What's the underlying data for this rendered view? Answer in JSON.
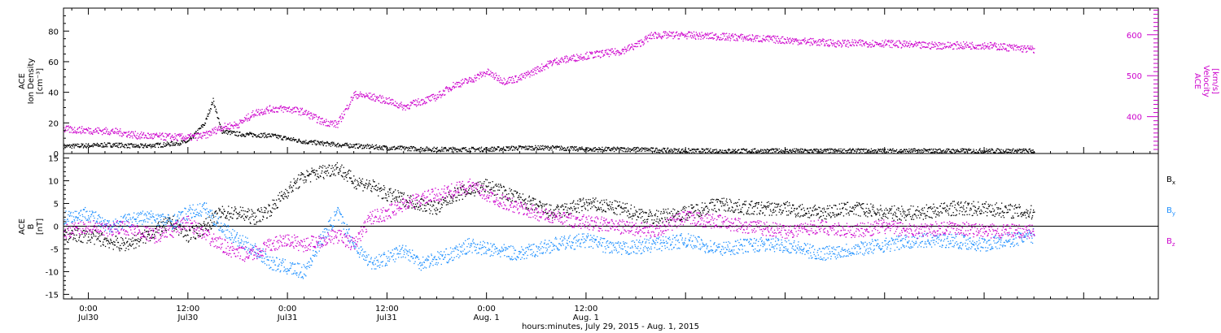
{
  "chart_data": [
    {
      "type": "scatter",
      "panel": "top",
      "left_ylabel": [
        "ACE",
        "Ion Density",
        "[cm⁻³]"
      ],
      "right_ylabel": [
        "ACE",
        "Velocity",
        "[km/s]"
      ],
      "left_ylim": [
        0,
        95
      ],
      "right_ylim": [
        310,
        665
      ],
      "left_yticks": [
        "0",
        "20",
        "40",
        "60",
        "80"
      ],
      "right_yticks": [
        "400",
        "500",
        "600"
      ],
      "xlim_hours": [
        -3,
        129
      ],
      "series": [
        {
          "color": "#000000",
          "axis": "left",
          "x": [
            -3,
            3,
            6,
            9,
            12,
            14,
            15,
            16,
            18,
            22,
            26,
            30,
            36,
            42,
            48,
            52,
            56,
            60,
            66,
            72,
            78,
            84,
            90,
            96,
            102,
            108,
            114
          ],
          "y": [
            5,
            6,
            5,
            6,
            8,
            20,
            35,
            15,
            13,
            12,
            8,
            6,
            4,
            3,
            3,
            4,
            4,
            3,
            3,
            2,
            2,
            2,
            2,
            2,
            2,
            2,
            2
          ]
        },
        {
          "color": "#cc00cc",
          "axis": "right",
          "x": [
            -3,
            3,
            6,
            9,
            12,
            14,
            16,
            18,
            20,
            22,
            24,
            26,
            28,
            30,
            32,
            34,
            36,
            38,
            40,
            42,
            44,
            46,
            48,
            50,
            52,
            56,
            60,
            64,
            66,
            68,
            72,
            78,
            84,
            90,
            96,
            100,
            104,
            108,
            114
          ],
          "y": [
            370,
            365,
            355,
            352,
            350,
            355,
            375,
            382,
            410,
            420,
            420,
            412,
            390,
            382,
            455,
            450,
            440,
            425,
            438,
            450,
            478,
            490,
            510,
            488,
            495,
            535,
            550,
            560,
            575,
            600,
            600,
            595,
            588,
            580,
            580,
            575,
            575,
            575,
            565
          ]
        }
      ]
    },
    {
      "type": "scatter",
      "panel": "bottom",
      "ylabel": [
        "ACE",
        "B",
        "[nT]"
      ],
      "ylim": [
        -16,
        16
      ],
      "yticks": [
        "-15",
        "-10",
        "-5",
        "0",
        "5",
        "10",
        "15"
      ],
      "xlim_hours": [
        -3,
        129
      ],
      "zero_line": true,
      "series": [
        {
          "name": "Bx",
          "name_base": "B",
          "name_sub": "x",
          "color": "#000000",
          "x": [
            -3,
            0,
            2,
            4,
            6,
            8,
            10,
            12,
            14,
            16,
            18,
            20,
            22,
            24,
            26,
            28,
            30,
            32,
            34,
            36,
            38,
            40,
            42,
            44,
            46,
            48,
            52,
            56,
            60,
            64,
            68,
            72,
            76,
            80,
            84,
            88,
            92,
            96,
            100,
            104,
            108,
            114
          ],
          "y": [
            -2,
            -2,
            -3,
            -4,
            -3,
            -1,
            1,
            -2,
            0,
            3,
            3,
            2,
            4,
            8,
            11,
            12,
            13,
            10,
            9,
            7,
            6,
            5,
            4,
            7,
            8,
            9,
            6,
            3,
            5,
            4,
            2,
            3,
            5,
            4,
            4,
            3,
            4,
            3,
            3,
            4,
            4,
            3
          ]
        },
        {
          "name": "By",
          "name_base": "B",
          "name_sub": "y",
          "color": "#1e90ff",
          "x": [
            -3,
            0,
            2,
            4,
            6,
            8,
            10,
            12,
            14,
            16,
            18,
            20,
            22,
            24,
            26,
            28,
            30,
            32,
            34,
            36,
            38,
            40,
            42,
            44,
            46,
            48,
            52,
            56,
            60,
            64,
            68,
            72,
            76,
            80,
            84,
            88,
            92,
            96,
            100,
            104,
            108,
            114
          ],
          "y": [
            2,
            3,
            0,
            1,
            2,
            2,
            1,
            3,
            4,
            0,
            -3,
            -5,
            -8,
            -9,
            -10,
            -3,
            3,
            -4,
            -8,
            -7,
            -5,
            -8,
            -7,
            -6,
            -4,
            -5,
            -6,
            -4,
            -3,
            -5,
            -4,
            -3,
            -5,
            -4,
            -4,
            -6,
            -5,
            -4,
            -3,
            -3,
            -4,
            -2
          ]
        },
        {
          "name": "Bz",
          "name_base": "B",
          "name_sub": "z",
          "color": "#cc00cc",
          "x": [
            -3,
            0,
            2,
            4,
            6,
            8,
            10,
            12,
            14,
            16,
            18,
            20,
            22,
            24,
            26,
            28,
            30,
            32,
            34,
            36,
            38,
            40,
            42,
            44,
            46,
            48,
            52,
            56,
            60,
            64,
            68,
            72,
            76,
            80,
            84,
            88,
            92,
            96,
            100,
            104,
            108,
            114
          ],
          "y": [
            -1,
            0,
            -1,
            0,
            -1,
            -2,
            -1,
            1,
            -2,
            -4,
            -6,
            -6,
            -4,
            -3,
            -4,
            -3,
            -2,
            -4,
            2,
            3,
            5,
            6,
            7,
            8,
            9,
            7,
            4,
            2,
            1,
            0,
            -1,
            2,
            1,
            0,
            -1,
            0,
            -1,
            0,
            -1,
            0,
            -1,
            -1
          ]
        }
      ]
    }
  ],
  "x_axis": {
    "title": "hours:minutes, July 29, 2015 - Aug. 1, 2015",
    "ticks": [
      {
        "hour": 0,
        "time": "0:00",
        "date": "Jul30"
      },
      {
        "hour": 12,
        "time": "12:00",
        "date": "Jul30"
      },
      {
        "hour": 24,
        "time": "0:00",
        "date": "Jul31"
      },
      {
        "hour": 36,
        "time": "12:00",
        "date": "Jul31"
      },
      {
        "hour": 48,
        "time": "0:00",
        "date": "Aug. 1"
      },
      {
        "hour": 60,
        "time": "12:00",
        "date": "Aug. 1"
      }
    ]
  }
}
